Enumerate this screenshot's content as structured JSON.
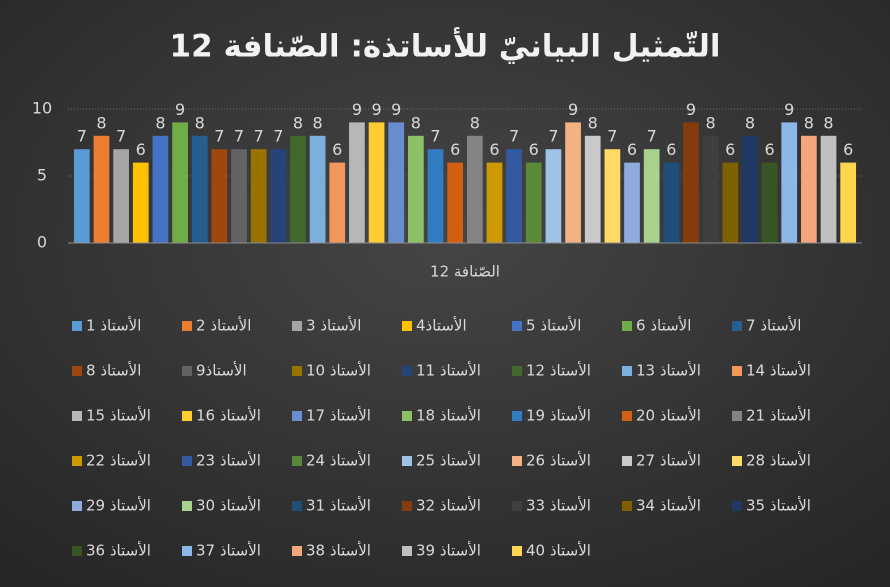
{
  "chart_data": {
    "type": "bar",
    "title": "التّمثيل البيانيّ للأساتذة: الصّنافة 12",
    "categories": [
      "الصّنافة 12"
    ],
    "ylim": [
      0,
      10
    ],
    "yticks": [
      0,
      5,
      10
    ],
    "grid": true,
    "series": [
      {
        "name": "الأستاذ 1",
        "color": "#5b9bd5",
        "values": [
          7
        ]
      },
      {
        "name": "الأستاذ 2",
        "color": "#ed7d31",
        "values": [
          8
        ]
      },
      {
        "name": "الأستاذ 3",
        "color": "#a5a5a5",
        "values": [
          7
        ]
      },
      {
        "name": "الأستاذ4",
        "color": "#ffc000",
        "values": [
          6
        ]
      },
      {
        "name": "الأستاذ 5",
        "color": "#4472c4",
        "values": [
          8
        ]
      },
      {
        "name": "الأستاذ 6",
        "color": "#70ad47",
        "values": [
          9
        ]
      },
      {
        "name": "الأستاذ 7",
        "color": "#255e91",
        "values": [
          8
        ]
      },
      {
        "name": "الأستاذ 8",
        "color": "#9e480e",
        "values": [
          7
        ]
      },
      {
        "name": "الأستاذ9",
        "color": "#636363",
        "values": [
          7
        ]
      },
      {
        "name": "الأستاذ 10",
        "color": "#997300",
        "values": [
          7
        ]
      },
      {
        "name": "الأستاذ 11",
        "color": "#264478",
        "values": [
          7
        ]
      },
      {
        "name": "الأستاذ 12",
        "color": "#43682b",
        "values": [
          8
        ]
      },
      {
        "name": "الأستاذ 13",
        "color": "#7cafdd",
        "values": [
          8
        ]
      },
      {
        "name": "الأستاذ 14",
        "color": "#f1975a",
        "values": [
          6
        ]
      },
      {
        "name": "الأستاذ 15",
        "color": "#b7b7b7",
        "values": [
          9
        ]
      },
      {
        "name": "الأستاذ 16",
        "color": "#ffcd33",
        "values": [
          9
        ]
      },
      {
        "name": "الأستاذ 17",
        "color": "#698ed0",
        "values": [
          9
        ]
      },
      {
        "name": "الأستاذ 18",
        "color": "#8cc168",
        "values": [
          8
        ]
      },
      {
        "name": "الأستاذ 19",
        "color": "#327dc2",
        "values": [
          7
        ]
      },
      {
        "name": "الأستاذ 20",
        "color": "#d26012",
        "values": [
          6
        ]
      },
      {
        "name": "الأستاذ 21",
        "color": "#848484",
        "values": [
          8
        ]
      },
      {
        "name": "الأستاذ 22",
        "color": "#cc9a00",
        "values": [
          6
        ]
      },
      {
        "name": "الأستاذ 23",
        "color": "#335aa1",
        "values": [
          7
        ]
      },
      {
        "name": "الأستاذ 24",
        "color": "#5a8a39",
        "values": [
          6
        ]
      },
      {
        "name": "الأستاذ 25",
        "color": "#9dc3e6",
        "values": [
          7
        ]
      },
      {
        "name": "الأستاذ 26",
        "color": "#f4b183",
        "values": [
          9
        ]
      },
      {
        "name": "الأستاذ 27",
        "color": "#c9c9c9",
        "values": [
          8
        ]
      },
      {
        "name": "الأستاذ 28",
        "color": "#ffd966",
        "values": [
          7
        ]
      },
      {
        "name": "الأستاذ 29",
        "color": "#8faadc",
        "values": [
          6
        ]
      },
      {
        "name": "الأستاذ 30",
        "color": "#a9d18e",
        "values": [
          7
        ]
      },
      {
        "name": "الأستاذ 31",
        "color": "#1f4e79",
        "values": [
          6
        ]
      },
      {
        "name": "الأستاذ 32",
        "color": "#843c0c",
        "values": [
          9
        ]
      },
      {
        "name": "الأستاذ 33",
        "color": "#3f3f3f",
        "values": [
          8
        ]
      },
      {
        "name": "الأستاذ 34",
        "color": "#7f6000",
        "values": [
          6
        ]
      },
      {
        "name": "الأستاذ 35",
        "color": "#203864",
        "values": [
          8
        ]
      },
      {
        "name": "الأستاذ 36",
        "color": "#375623",
        "values": [
          6
        ]
      },
      {
        "name": "الأستاذ 37",
        "color": "#8bb8e8",
        "values": [
          9
        ]
      },
      {
        "name": "الأستاذ 38",
        "color": "#f4a57a",
        "values": [
          8
        ]
      },
      {
        "name": "الأستاذ 39",
        "color": "#c0c0c0",
        "values": [
          8
        ]
      },
      {
        "name": "الأستاذ 40",
        "color": "#ffd54f",
        "values": [
          6
        ]
      }
    ]
  }
}
